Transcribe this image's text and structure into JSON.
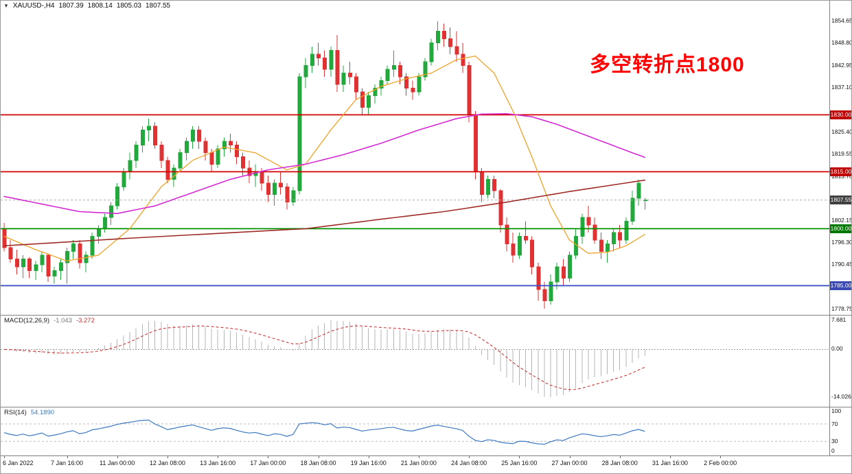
{
  "window": {
    "dropdown_icon": "▼",
    "title": {
      "symbol_tf": "XAUUSD-,H4",
      "open": "1807.39",
      "high": "1808.14",
      "low": "1805.03",
      "close": "1807.55"
    }
  },
  "annotation": {
    "text": "多空转折点1800",
    "color": "#ff0000"
  },
  "colors": {
    "background": "#ffffff",
    "border": "#9a9a9a",
    "separator": "#808080",
    "axis_text": "#111111",
    "candle_up": "#22a83c",
    "candle_down": "#e03232",
    "current_price_line": "#aaaaaa",
    "current_price_badge": "#404040"
  },
  "chart_data": {
    "type": "candlestick",
    "symbol": "XAUUSD-",
    "timeframe": "H4",
    "title": "XAUUSD-,H4 1807.39 1808.14 1805.03 1807.55",
    "price_axis": {
      "side": "right",
      "visible_range": [
        1777.5,
        1860.1
      ],
      "ticks": [
        {
          "label": "1854.65",
          "value": 1854.65
        },
        {
          "label": "1848.80",
          "value": 1848.8
        },
        {
          "label": "1842.95",
          "value": 1842.95
        },
        {
          "label": "1837.10",
          "value": 1837.1
        },
        {
          "label": "1825.40",
          "value": 1825.4
        },
        {
          "label": "1819.55",
          "value": 1819.55
        },
        {
          "label": "1813.70",
          "value": 1813.7
        },
        {
          "label": "1802.15",
          "value": 1802.15
        },
        {
          "label": "1796.30",
          "value": 1796.3
        },
        {
          "label": "1790.45",
          "value": 1790.45
        },
        {
          "label": "1778.75",
          "value": 1778.75
        }
      ]
    },
    "horizontal_levels": [
      {
        "name": "resistance-1830",
        "label": "1830.00",
        "value": 1830,
        "line_color": "#d40000",
        "badge_color": "#c00000"
      },
      {
        "name": "resistance-1815",
        "label": "1815.00",
        "value": 1815,
        "line_color": "#d40000",
        "badge_color": "#c00000"
      },
      {
        "name": "support-1800",
        "label": "1800.00",
        "value": 1800,
        "line_color": "#009000",
        "badge_color": "#007800"
      },
      {
        "name": "support-1785",
        "label": "1785.00",
        "value": 1785,
        "line_color": "#3c50c8",
        "badge_color": "#3a49b4"
      }
    ],
    "current_price": {
      "label": "1807.55",
      "value": 1807.55
    },
    "candles": [
      [
        1800,
        1801.5,
        1794,
        1795
      ],
      [
        1795,
        1797,
        1791,
        1792
      ],
      [
        1792,
        1794.5,
        1788,
        1790
      ],
      [
        1790,
        1793,
        1787,
        1792
      ],
      [
        1792,
        1792.5,
        1787,
        1789
      ],
      [
        1789,
        1791.5,
        1786.5,
        1790.5
      ],
      [
        1790.5,
        1794,
        1788.5,
        1793
      ],
      [
        1793,
        1793.5,
        1786,
        1787.5
      ],
      [
        1787.5,
        1790,
        1785.5,
        1789
      ],
      [
        1789,
        1792,
        1786.5,
        1791
      ],
      [
        1791,
        1795,
        1785.5,
        1794
      ],
      [
        1794,
        1797,
        1792,
        1796
      ],
      [
        1796,
        1797,
        1789.5,
        1791
      ],
      [
        1791,
        1794,
        1788.5,
        1793
      ],
      [
        1793,
        1799,
        1792,
        1798
      ],
      [
        1798,
        1801,
        1796,
        1800
      ],
      [
        1800,
        1804,
        1799,
        1803
      ],
      [
        1803,
        1807,
        1801,
        1806
      ],
      [
        1806,
        1812,
        1805,
        1811
      ],
      [
        1811,
        1816,
        1810,
        1815
      ],
      [
        1815,
        1820,
        1813,
        1818
      ],
      [
        1818,
        1823,
        1816,
        1822
      ],
      [
        1822,
        1827,
        1820,
        1826
      ],
      [
        1826,
        1829,
        1823,
        1827
      ],
      [
        1827,
        1828,
        1821,
        1822
      ],
      [
        1822,
        1823,
        1816,
        1818
      ],
      [
        1818,
        1819,
        1812,
        1813
      ],
      [
        1813,
        1817,
        1811,
        1816
      ],
      [
        1816,
        1821,
        1815,
        1820
      ],
      [
        1820,
        1824,
        1818,
        1823
      ],
      [
        1823,
        1827,
        1821,
        1826
      ],
      [
        1826,
        1827,
        1821,
        1823
      ],
      [
        1823,
        1824,
        1818,
        1820
      ],
      [
        1820,
        1821,
        1815,
        1817
      ],
      [
        1817,
        1822,
        1816,
        1821
      ],
      [
        1821,
        1824,
        1819,
        1823
      ],
      [
        1823,
        1825,
        1820,
        1822
      ],
      [
        1822,
        1823,
        1817,
        1819
      ],
      [
        1819,
        1820,
        1814,
        1816
      ],
      [
        1816,
        1818,
        1812,
        1814
      ],
      [
        1814,
        1817,
        1811,
        1815
      ],
      [
        1815,
        1816,
        1810,
        1812
      ],
      [
        1812,
        1814,
        1807,
        1809
      ],
      [
        1809,
        1813,
        1806,
        1812
      ],
      [
        1812,
        1815,
        1809,
        1811
      ],
      [
        1811,
        1812,
        1805,
        1807
      ],
      [
        1807,
        1811,
        1806,
        1810
      ],
      [
        1810,
        1841,
        1809,
        1840
      ],
      [
        1840,
        1845,
        1837,
        1843
      ],
      [
        1843,
        1848,
        1841,
        1846
      ],
      [
        1846,
        1849,
        1843,
        1845
      ],
      [
        1845,
        1847,
        1840,
        1842
      ],
      [
        1842,
        1848,
        1840,
        1847
      ],
      [
        1847,
        1851,
        1836,
        1838
      ],
      [
        1838,
        1843,
        1836,
        1841
      ],
      [
        1841,
        1844,
        1838,
        1840
      ],
      [
        1840,
        1841,
        1834,
        1836
      ],
      [
        1836,
        1837,
        1830,
        1832
      ],
      [
        1832,
        1836,
        1830,
        1835
      ],
      [
        1835,
        1838,
        1833,
        1837
      ],
      [
        1837,
        1840,
        1835,
        1839
      ],
      [
        1839,
        1843,
        1838,
        1842
      ],
      [
        1842,
        1847,
        1840,
        1843
      ],
      [
        1843,
        1844,
        1838,
        1840
      ],
      [
        1840,
        1841,
        1835,
        1837
      ],
      [
        1837,
        1839,
        1834,
        1836
      ],
      [
        1836,
        1841,
        1835,
        1840
      ],
      [
        1840,
        1845,
        1839,
        1844
      ],
      [
        1844,
        1850,
        1843,
        1849
      ],
      [
        1849,
        1854.65,
        1847,
        1852
      ],
      [
        1852,
        1854,
        1848,
        1850
      ],
      [
        1850,
        1853,
        1846,
        1848
      ],
      [
        1848,
        1852,
        1844,
        1846
      ],
      [
        1846,
        1849,
        1841,
        1843
      ],
      [
        1843,
        1844,
        1828,
        1830
      ],
      [
        1830,
        1831,
        1813,
        1815
      ],
      [
        1815,
        1816,
        1807,
        1809
      ],
      [
        1809,
        1814,
        1808,
        1813
      ],
      [
        1813,
        1814,
        1808,
        1810
      ],
      [
        1810,
        1810.5,
        1799,
        1801
      ],
      [
        1801,
        1803,
        1794,
        1796
      ],
      [
        1796,
        1799,
        1791,
        1793
      ],
      [
        1793,
        1799,
        1792,
        1798
      ],
      [
        1798,
        1802,
        1796,
        1797
      ],
      [
        1797,
        1798,
        1788,
        1790
      ],
      [
        1790,
        1791,
        1781,
        1784
      ],
      [
        1784,
        1786,
        1778.9,
        1781
      ],
      [
        1781,
        1788,
        1780,
        1786
      ],
      [
        1786,
        1791,
        1784,
        1790
      ],
      [
        1790,
        1792,
        1785,
        1787
      ],
      [
        1787,
        1794,
        1786,
        1793
      ],
      [
        1793,
        1800,
        1792,
        1798
      ],
      [
        1798,
        1804,
        1796,
        1803
      ],
      [
        1803,
        1806,
        1799,
        1801
      ],
      [
        1801,
        1803,
        1796,
        1797
      ],
      [
        1797,
        1799,
        1792,
        1794
      ],
      [
        1794,
        1797,
        1791,
        1796
      ],
      [
        1796,
        1800,
        1794,
        1799
      ],
      [
        1799,
        1801,
        1795,
        1797
      ],
      [
        1797,
        1803,
        1796,
        1802
      ],
      [
        1802,
        1810,
        1801,
        1808
      ],
      [
        1808,
        1813,
        1806,
        1812
      ],
      [
        1807.39,
        1808.14,
        1805.03,
        1807.55
      ]
    ],
    "moving_averages": [
      {
        "name": "ma-fast-line",
        "color": "#efa227",
        "width": 1.3,
        "anchors": [
          [
            0,
            1798
          ],
          [
            5,
            1794.5
          ],
          [
            10,
            1791.5
          ],
          [
            15,
            1793
          ],
          [
            20,
            1800
          ],
          [
            25,
            1811
          ],
          [
            30,
            1818
          ],
          [
            35,
            1821.5
          ],
          [
            40,
            1820
          ],
          [
            45,
            1815.5
          ],
          [
            48,
            1817
          ],
          [
            52,
            1826
          ],
          [
            56,
            1834
          ],
          [
            60,
            1837.5
          ],
          [
            64,
            1839.5
          ],
          [
            68,
            1841
          ],
          [
            72,
            1844.5
          ],
          [
            75,
            1845.5
          ],
          [
            78,
            1841
          ],
          [
            81,
            1831
          ],
          [
            84,
            1819
          ],
          [
            87,
            1806
          ],
          [
            90,
            1797
          ],
          [
            93,
            1793.5
          ],
          [
            96,
            1793.8
          ],
          [
            99,
            1795.5
          ],
          [
            102,
            1798.5
          ]
        ]
      },
      {
        "name": "ma-mid-line",
        "color": "#d42ad4",
        "width": 1.6,
        "anchors": [
          [
            0,
            1808.5
          ],
          [
            6,
            1806.5
          ],
          [
            12,
            1804.5
          ],
          [
            18,
            1804
          ],
          [
            24,
            1806
          ],
          [
            30,
            1809.5
          ],
          [
            36,
            1813
          ],
          [
            42,
            1815.5
          ],
          [
            48,
            1817
          ],
          [
            54,
            1819.5
          ],
          [
            60,
            1822.5
          ],
          [
            66,
            1826
          ],
          [
            72,
            1829
          ],
          [
            76,
            1830.2
          ],
          [
            80,
            1830.3
          ],
          [
            84,
            1829.5
          ],
          [
            88,
            1827.5
          ],
          [
            92,
            1825
          ],
          [
            96,
            1822.5
          ],
          [
            100,
            1820
          ],
          [
            102,
            1818.8
          ]
        ]
      },
      {
        "name": "ma-slow-line",
        "color": "#9e2b25",
        "width": 1.6,
        "anchors": [
          [
            0,
            1795.5
          ],
          [
            20,
            1797.5
          ],
          [
            40,
            1799.3
          ],
          [
            48,
            1800
          ],
          [
            60,
            1802.5
          ],
          [
            70,
            1804.5
          ],
          [
            80,
            1807
          ],
          [
            90,
            1809.8
          ],
          [
            96,
            1811.3
          ],
          [
            102,
            1812.8
          ]
        ]
      }
    ],
    "time_axis": {
      "labels": [
        "6 Jan 2022",
        "7 Jan 16:00",
        "11 Jan 00:00",
        "12 Jan 08:00",
        "13 Jan 16:00",
        "17 Jan 00:00",
        "18 Jan 08:00",
        "19 Jan 16:00",
        "21 Jan 00:00",
        "24 Jan 08:00",
        "25 Jan 16:00",
        "27 Jan 00:00",
        "28 Jan 08:00",
        "31 Jan 16:00",
        "2 Feb 00:00"
      ],
      "bar_indices": [
        0,
        10,
        18,
        26,
        34,
        42,
        50,
        58,
        66,
        74,
        82,
        90,
        98,
        106,
        114
      ]
    },
    "indicators": {
      "macd": {
        "label": "MACD(12,26,9)",
        "value_main": "-1.043",
        "value_signal": "-3.272",
        "params": [
          12,
          26,
          9
        ],
        "hist_color": "#b4b4b4",
        "signal_color": "#cc3333",
        "zero_line_color": "#999999",
        "axis_labels": {
          "max": "7.681",
          "zero": "0.00",
          "min": "-14.026"
        }
      },
      "rsi": {
        "label": "RSI(14)",
        "value": "54.1890",
        "period": 14,
        "line_color": "#3b78c0",
        "level_color": "#bbbbbb",
        "levels": [
          70,
          30
        ],
        "axis_labels": [
          {
            "label": "100",
            "value": 100
          },
          {
            "label": "70",
            "value": 70
          },
          {
            "label": "30",
            "value": 30
          },
          {
            "label": "0",
            "value": 0
          }
        ]
      }
    }
  }
}
